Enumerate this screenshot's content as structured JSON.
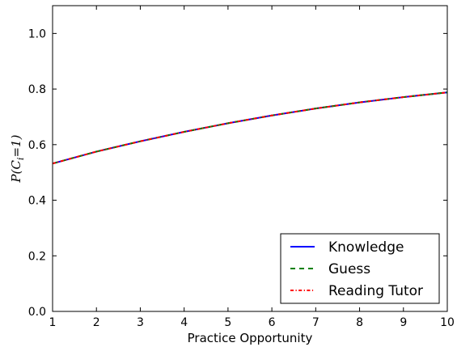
{
  "chart_data": {
    "type": "line",
    "xlabel": "Practice Opportunity",
    "ylabel": "P(C_i = 1)",
    "ylabel_parts": {
      "prefix": "P(C",
      "subscript": "i",
      "suffix": "=1)"
    },
    "xlim": [
      1,
      10
    ],
    "ylim": [
      0.0,
      1.1
    ],
    "x_ticks": [
      1,
      2,
      3,
      4,
      5,
      6,
      7,
      8,
      9,
      10
    ],
    "y_ticks": [
      0.0,
      0.2,
      0.4,
      0.6,
      0.8,
      1.0
    ],
    "y_tick_labels": [
      "0.0",
      "0.2",
      "0.4",
      "0.6",
      "0.8",
      "1.0"
    ],
    "grid": false,
    "legend_position": "lower-right",
    "x": [
      1,
      2,
      3,
      4,
      5,
      6,
      7,
      8,
      9,
      10
    ],
    "series": [
      {
        "name": "Knowledge",
        "color": "#0000ff",
        "style": "solid",
        "values": [
          0.532,
          0.575,
          0.612,
          0.646,
          0.677,
          0.705,
          0.73,
          0.752,
          0.771,
          0.788
        ]
      },
      {
        "name": "Guess",
        "color": "#008000",
        "style": "dashed",
        "values": [
          0.532,
          0.575,
          0.612,
          0.646,
          0.677,
          0.705,
          0.73,
          0.752,
          0.771,
          0.788
        ]
      },
      {
        "name": "Reading Tutor",
        "color": "#ff0000",
        "style": "dashdot",
        "values": [
          0.532,
          0.575,
          0.612,
          0.646,
          0.677,
          0.705,
          0.73,
          0.752,
          0.771,
          0.788
        ]
      }
    ]
  }
}
